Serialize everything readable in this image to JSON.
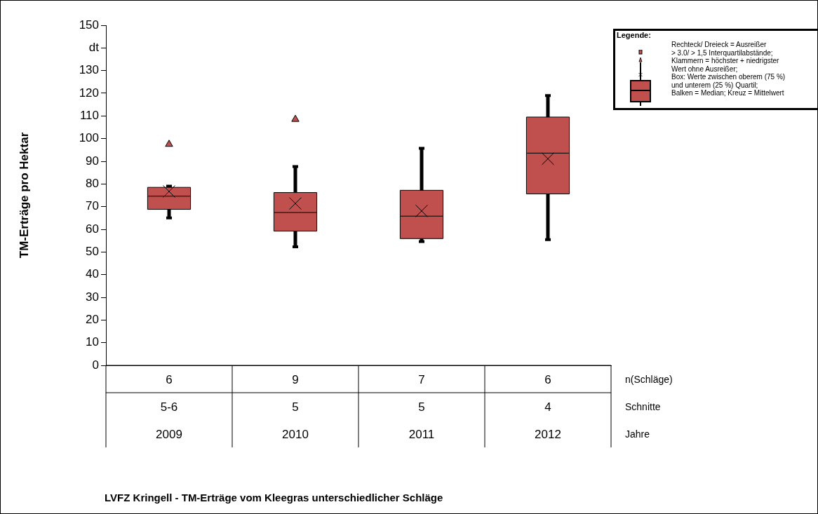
{
  "chart_data": {
    "type": "box",
    "title": "LVFZ Kringell - TM-Erträge vom Kleegras unterschiedlicher Schläge",
    "ylabel": "TM-Erträge pro Hektar",
    "legend_title": "Legende:",
    "categories": [
      "2009",
      "2010",
      "2011",
      "2012"
    ],
    "color": "#c0504d",
    "boxes": [
      {
        "low": 65,
        "q1": 68.8,
        "median": 74.6,
        "q3": 78.5,
        "high": 79,
        "mean": 76.7,
        "outliers": [
          97.5
        ]
      },
      {
        "low": 52.3,
        "q1": 59.2,
        "median": 67.4,
        "q3": 76.2,
        "high": 87.7,
        "mean": 71.4,
        "outliers": [
          108.5
        ]
      },
      {
        "low": 54.6,
        "q1": 55.9,
        "median": 65.8,
        "q3": 77.2,
        "high": 95.7,
        "mean": 68.1
      },
      {
        "low": 55.4,
        "q1": 75.6,
        "median": 93.6,
        "q3": 109.5,
        "high": 119,
        "mean": 91.1
      }
    ],
    "ylim": [
      0,
      150
    ],
    "yticks": [
      0,
      10,
      20,
      30,
      40,
      50,
      60,
      70,
      80,
      90,
      100,
      110,
      120,
      130,
      {
        "value": 140,
        "label": "dt"
      },
      150
    ],
    "grid": false,
    "annotations": [
      "6",
      "9",
      "7",
      "6",
      "n(Schläge)",
      "5-6",
      "5",
      "5",
      "4",
      "Schnitte",
      "Jahre",
      "Rechteck/ Dreieck = Ausreißer",
      "> 3.0/  > 1,5 Interquartilabstände;",
      "Klammern  = höchster + niedrigster",
      "Wert ohne Ausreißer;",
      "Box: Werte zwischen oberem (75 %)",
      "und unterem (25 %) Quartil;",
      "Balken = Median;  Kreuz = Mittelwert"
    ]
  }
}
